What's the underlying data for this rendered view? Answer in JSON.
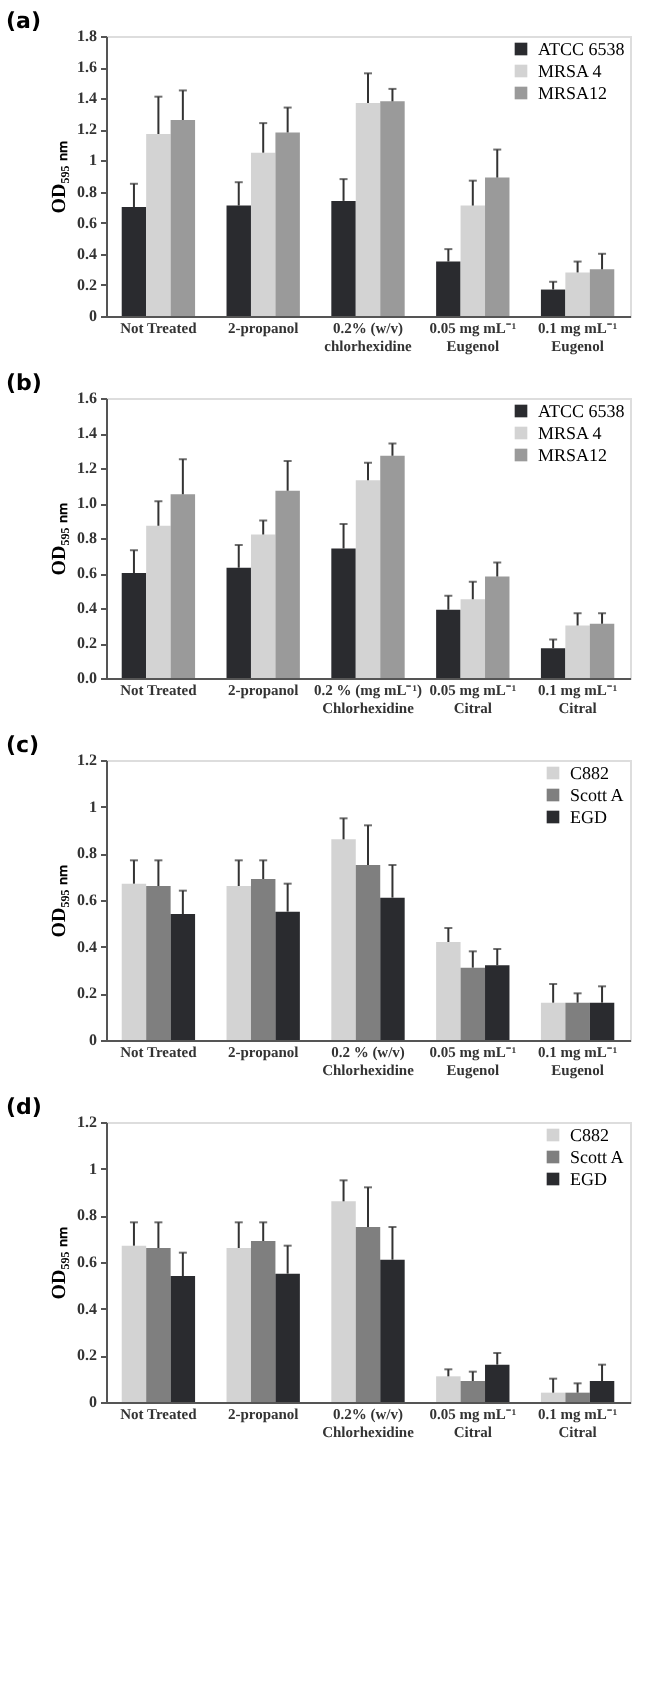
{
  "chart_data": [
    {
      "type": "bar",
      "title": "(a)",
      "ylabel": "OD₅₉₅ ₙₘ",
      "categories": [
        "Not Treated",
        "2-propanol",
        "0.2% (w/v)\nchlorhexidine",
        "0.05 mg mL⁻¹\nEugenol",
        "0.1 mg mL⁻¹\nEugenol"
      ],
      "ylim": [
        0,
        1.8
      ],
      "yticks": [
        0,
        0.2,
        0.4,
        0.6,
        0.8,
        1,
        1.2,
        1.4,
        1.6,
        1.8
      ],
      "legend": "top right",
      "grid": false,
      "series": [
        {
          "name": "ATCC 6538",
          "color": "#2a2b2f",
          "values": [
            0.7,
            0.71,
            0.74,
            0.35,
            0.17
          ],
          "errors": [
            [
              0.7,
              0.85
            ],
            [
              0.71,
              0.86
            ],
            [
              0.74,
              0.88
            ],
            [
              0.35,
              0.43
            ],
            [
              0.17,
              0.22
            ]
          ]
        },
        {
          "name": "MRSA 4",
          "color": "#d3d3d3",
          "values": [
            1.17,
            1.05,
            1.37,
            0.71,
            0.28
          ],
          "errors": [
            [
              1.17,
              1.41
            ],
            [
              1.05,
              1.24
            ],
            [
              1.37,
              1.56
            ],
            [
              0.71,
              0.87
            ],
            [
              0.28,
              0.35
            ]
          ]
        },
        {
          "name": "MRSA12",
          "color": "#9a9a9a",
          "values": [
            1.26,
            1.18,
            1.38,
            0.89,
            0.3
          ],
          "errors": [
            [
              1.26,
              1.45
            ],
            [
              1.18,
              1.34
            ],
            [
              1.38,
              1.46
            ],
            [
              0.89,
              1.07
            ],
            [
              0.3,
              0.4
            ]
          ]
        }
      ]
    },
    {
      "type": "bar",
      "title": "(b)",
      "ylabel": "OD₅₉₅ ₙₘ",
      "categories": [
        "Not Treated",
        "2-propanol",
        "0.2 % (mg mL⁻¹)\nChlorhexidine",
        "0.05 mg mL⁻¹\nCitral",
        "0.1 mg mL⁻¹\nCitral"
      ],
      "ylim": [
        0,
        1.6
      ],
      "yticks": [
        {
          "value": 0,
          "label": "0.0"
        },
        0.2,
        0.4,
        0.6,
        0.8,
        {
          "value": 1,
          "label": "1.0"
        },
        1.2,
        1.4,
        1.6
      ],
      "legend": "top right",
      "grid": false,
      "series": [
        {
          "name": "ATCC 6538",
          "color": "#2a2b2f",
          "values": [
            0.6,
            0.63,
            0.74,
            0.39,
            0.17
          ],
          "errors": [
            [
              0.6,
              0.73
            ],
            [
              0.63,
              0.76
            ],
            [
              0.74,
              0.88
            ],
            [
              0.39,
              0.47
            ],
            [
              0.17,
              0.22
            ]
          ]
        },
        {
          "name": "MRSA 4",
          "color": "#d3d3d3",
          "values": [
            0.87,
            0.82,
            1.13,
            0.45,
            0.3
          ],
          "errors": [
            [
              0.87,
              1.01
            ],
            [
              0.82,
              0.9
            ],
            [
              1.13,
              1.23
            ],
            [
              0.45,
              0.55
            ],
            [
              0.3,
              0.37
            ]
          ]
        },
        {
          "name": "MRSA12",
          "color": "#9a9a9a",
          "values": [
            1.05,
            1.07,
            1.27,
            0.58,
            0.31
          ],
          "errors": [
            [
              1.05,
              1.25
            ],
            [
              1.07,
              1.24
            ],
            [
              1.27,
              1.34
            ],
            [
              0.58,
              0.66
            ],
            [
              0.31,
              0.37
            ]
          ]
        }
      ]
    },
    {
      "type": "bar",
      "title": "(c)",
      "ylabel": "OD₅₉₅ ₙₘ",
      "categories": [
        "Not Treated",
        "2-propanol",
        "0.2 % (w/v)\nChlorhexidine",
        "0.05 mg mL⁻¹\nEugenol",
        "0.1 mg mL⁻¹\nEugenol"
      ],
      "ylim": [
        0,
        1.2
      ],
      "yticks": [
        0,
        0.2,
        0.4,
        0.6,
        0.8,
        1,
        1.2
      ],
      "legend": "top right",
      "grid": false,
      "series": [
        {
          "name": "C882",
          "color": "#d3d3d3",
          "values": [
            0.67,
            0.66,
            0.86,
            0.42,
            0.16
          ],
          "errors": [
            [
              0.67,
              0.77
            ],
            [
              0.66,
              0.77
            ],
            [
              0.86,
              0.95
            ],
            [
              0.42,
              0.48
            ],
            [
              0.16,
              0.24
            ]
          ]
        },
        {
          "name": "Scott A",
          "color": "#7f7f7f",
          "values": [
            0.66,
            0.69,
            0.75,
            0.31,
            0.16
          ],
          "errors": [
            [
              0.66,
              0.77
            ],
            [
              0.69,
              0.77
            ],
            [
              0.75,
              0.92
            ],
            [
              0.31,
              0.38
            ],
            [
              0.16,
              0.2
            ]
          ]
        },
        {
          "name": "EGD",
          "color": "#2a2b2f",
          "values": [
            0.54,
            0.55,
            0.61,
            0.32,
            0.16
          ],
          "errors": [
            [
              0.54,
              0.64
            ],
            [
              0.55,
              0.67
            ],
            [
              0.61,
              0.75
            ],
            [
              0.32,
              0.39
            ],
            [
              0.16,
              0.23
            ]
          ]
        }
      ]
    },
    {
      "type": "bar",
      "title": "(d)",
      "ylabel": "OD₅₉₅ ₙₘ",
      "categories": [
        "Not Treated",
        "2-propanol",
        "0.2% (w/v)\nChlorhexidine",
        "0.05 mg mL⁻¹\nCitral",
        "0.1 mg mL⁻¹\nCitral"
      ],
      "ylim": [
        0,
        1.2
      ],
      "yticks": [
        0,
        0.2,
        0.4,
        0.6,
        0.8,
        1,
        1.2
      ],
      "legend": "top right",
      "grid": false,
      "series": [
        {
          "name": "C882",
          "color": "#d3d3d3",
          "values": [
            0.67,
            0.66,
            0.86,
            0.11,
            0.04
          ],
          "errors": [
            [
              0.67,
              0.77
            ],
            [
              0.66,
              0.77
            ],
            [
              0.86,
              0.95
            ],
            [
              0.11,
              0.14
            ],
            [
              0.04,
              0.1
            ]
          ]
        },
        {
          "name": "Scott A",
          "color": "#7f7f7f",
          "values": [
            0.66,
            0.69,
            0.75,
            0.09,
            0.04
          ],
          "errors": [
            [
              0.66,
              0.77
            ],
            [
              0.69,
              0.77
            ],
            [
              0.75,
              0.92
            ],
            [
              0.09,
              0.13
            ],
            [
              0.04,
              0.08
            ]
          ]
        },
        {
          "name": "EGD",
          "color": "#2a2b2f",
          "values": [
            0.54,
            0.55,
            0.61,
            0.16,
            0.09
          ],
          "errors": [
            [
              0.54,
              0.64
            ],
            [
              0.55,
              0.67
            ],
            [
              0.61,
              0.75
            ],
            [
              0.16,
              0.21
            ],
            [
              0.09,
              0.16
            ]
          ]
        }
      ]
    }
  ]
}
